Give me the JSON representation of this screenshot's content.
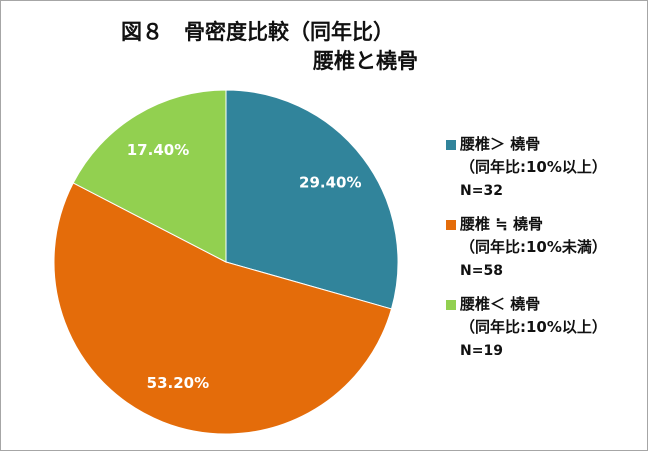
{
  "chart_data": {
    "type": "pie",
    "title": "図８　骨密度比較（同年比）",
    "subtitle": "腰椎と橈骨",
    "start_angle_deg": 0,
    "direction": "clockwise",
    "slices": [
      {
        "label": "29.40%",
        "value": 29.4,
        "color": "#31849b",
        "legend": {
          "line1": "腰椎＞ 橈骨",
          "line2": "（同年比:10%以上）",
          "line3": "N=32"
        }
      },
      {
        "label": "53.20%",
        "value": 53.2,
        "color": "#e46c0a",
        "legend": {
          "line1": "腰椎 ≒ 橈骨",
          "line2": "（同年比:10%未満）",
          "line3": "N=58"
        }
      },
      {
        "label": "17.40%",
        "value": 17.4,
        "color": "#92d050",
        "legend": {
          "line1": "腰椎＜ 橈骨",
          "line2": "（同年比:10%以上）",
          "line3": "N=19"
        }
      }
    ],
    "legend_position": "right"
  }
}
